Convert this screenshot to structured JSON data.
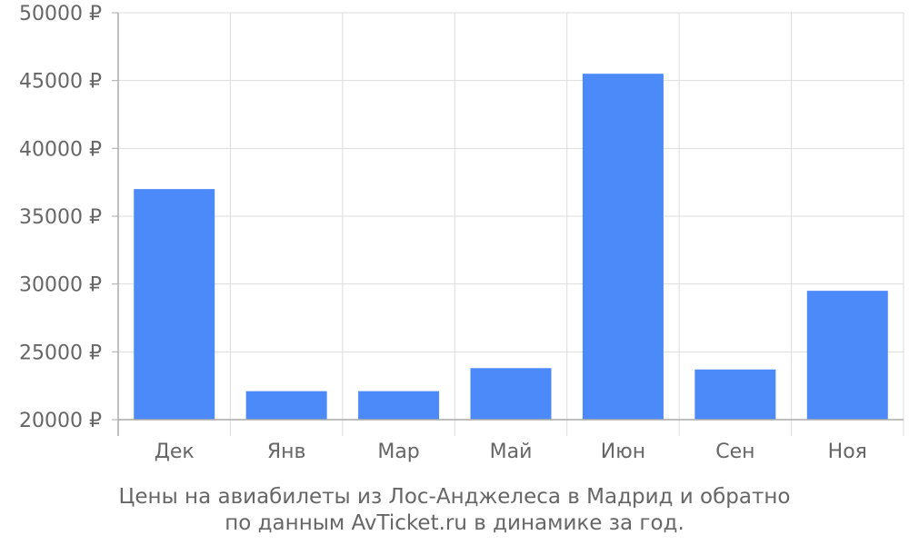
{
  "chart_data": {
    "type": "bar",
    "categories": [
      "Дек",
      "Янв",
      "Мар",
      "Май",
      "Июн",
      "Сен",
      "Ноя"
    ],
    "values": [
      37000,
      22100,
      22100,
      23800,
      45500,
      23700,
      29500
    ],
    "ylim": [
      20000,
      50000
    ],
    "yticks": [
      20000,
      25000,
      30000,
      35000,
      40000,
      45000,
      50000
    ],
    "ytick_labels": [
      "20000 ₽",
      "25000 ₽",
      "30000 ₽",
      "35000 ₽",
      "40000 ₽",
      "45000 ₽",
      "50000 ₽"
    ],
    "grid": true,
    "bar_color": "#4d8af9",
    "caption": [
      "Цены на авиабилеты из Лос-Анджелеса в Мадрид и обратно",
      "по данным AvTicket.ru в динамике за год."
    ]
  }
}
